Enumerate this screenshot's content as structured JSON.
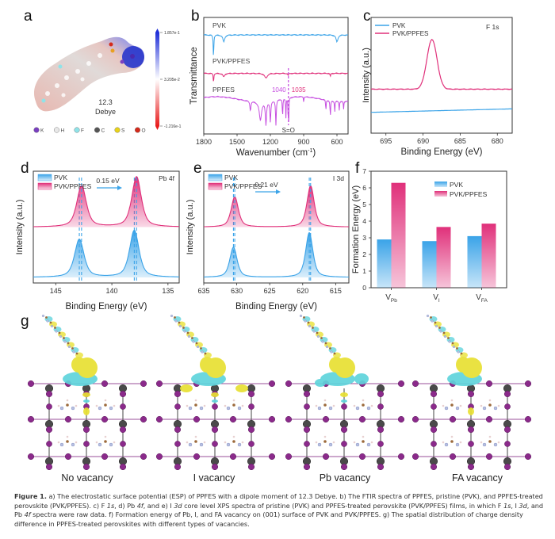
{
  "panels": {
    "a": {
      "letter": "a",
      "dipole_value": "12.3",
      "dipole_unit": "Debye",
      "colorbar": {
        "max": "1.857e-1",
        "mid": "3.205e-2",
        "min": "-1.216e-1",
        "colors": [
          "#1f2fd8",
          "#ffffff",
          "#e81c1c"
        ]
      },
      "atom_legend": [
        {
          "symbol": "K",
          "color": "#7a3fc0"
        },
        {
          "symbol": "H",
          "color": "#e8e8e8"
        },
        {
          "symbol": "F",
          "color": "#8fe3e8"
        },
        {
          "symbol": "C",
          "color": "#555555"
        },
        {
          "symbol": "S",
          "color": "#e8d21a"
        },
        {
          "symbol": "O",
          "color": "#d42a1a"
        }
      ]
    },
    "b": {
      "letter": "b"
    },
    "c": {
      "letter": "c"
    },
    "d": {
      "letter": "d"
    },
    "e": {
      "letter": "e"
    },
    "f": {
      "letter": "f"
    },
    "g": {
      "letter": "g",
      "labels": [
        "No vacancy",
        "I vacancy",
        "Pb vacancy",
        "FA vacancy"
      ]
    }
  },
  "colors": {
    "pvk": "#3aa3e8",
    "pvk_ppfes": "#e0307a",
    "ppfes": "#c64ee0"
  },
  "chart_data": [
    {
      "id": "b",
      "type": "line",
      "title": "",
      "xlabel": "Wavenumber (cm⁻¹)",
      "ylabel": "Transmittance",
      "xlim": [
        1800,
        500
      ],
      "xticks": [
        1800,
        1500,
        1200,
        900,
        600
      ],
      "series": [
        {
          "name": "PVK",
          "color": "#3aa3e8",
          "offset": 0.85,
          "dips": [
            [
              1712,
              0.2,
              6
            ],
            [
              1620,
              0.06,
              20
            ],
            [
              600,
              0.06,
              20
            ]
          ]
        },
        {
          "name": "PVK/PPFES",
          "color": "#e0307a",
          "offset": 0.52,
          "dips": [
            [
              1712,
              0.08,
              6
            ],
            [
              1620,
              0.03,
              20
            ],
            [
              1240,
              0.04,
              30
            ],
            [
              1040,
              0.02,
              8
            ],
            [
              660,
              0.03,
              6
            ]
          ]
        },
        {
          "name": "PPFES",
          "color": "#c64ee0",
          "offset": 0.3,
          "dips": [
            [
              1380,
              0.08,
              10
            ],
            [
              1290,
              0.16,
              25
            ],
            [
              1240,
              0.2,
              12
            ],
            [
              1200,
              0.18,
              10
            ],
            [
              1150,
              0.22,
              8
            ],
            [
              1090,
              0.16,
              6
            ],
            [
              1060,
              0.17,
              5
            ],
            [
              1040,
              0.2,
              4
            ],
            [
              1035,
              0.2,
              4
            ],
            [
              900,
              0.05,
              4
            ],
            [
              700,
              0.1,
              5
            ],
            [
              660,
              0.14,
              6
            ],
            [
              620,
              0.1,
              5
            ],
            [
              580,
              0.08,
              5
            ],
            [
              540,
              0.07,
              5
            ]
          ]
        }
      ],
      "annotations": {
        "peak_left": "1040",
        "peak_right": "1035",
        "bond": "S=O"
      }
    },
    {
      "id": "c",
      "type": "line",
      "title": "F 1s",
      "xlabel": "Binding Energy (eV)",
      "ylabel": "Intensity (a.u.)",
      "xlim": [
        697,
        678
      ],
      "xticks": [
        695,
        690,
        685,
        680
      ],
      "series": [
        {
          "name": "PVK",
          "color": "#3aa3e8",
          "baseline": [
            0.18,
            0.21
          ]
        },
        {
          "name": "PVK/PPFES",
          "color": "#e0307a",
          "baseline": [
            0.38,
            0.38
          ],
          "peak_center": 688.8,
          "peak_height": 0.43,
          "peak_fwhm": 1.6
        }
      ]
    },
    {
      "id": "d",
      "type": "area",
      "title": "Pb 4f",
      "xlabel": "Binding Energy (eV)",
      "ylabel": "Intensity (a.u.)",
      "xlim": [
        147,
        134
      ],
      "xticks": [
        145,
        140,
        135
      ],
      "shift_label": "0.15 eV",
      "series": [
        {
          "name": "PVK",
          "color": "#3aa3e8",
          "baseline": 0.05,
          "peaks": [
            [
              142.9,
              0.34
            ],
            [
              138.0,
              0.42
            ]
          ],
          "fwhm": 1.0
        },
        {
          "name": "PVK/PPFES",
          "color": "#e0307a",
          "baseline": 0.5,
          "peaks": [
            [
              142.7,
              0.37
            ],
            [
              137.8,
              0.45
            ]
          ],
          "fwhm": 1.0
        }
      ]
    },
    {
      "id": "e",
      "type": "area",
      "title": "I 3d",
      "xlabel": "Binding Energy (eV)",
      "ylabel": "Intensity (a.u.)",
      "xlim": [
        635,
        613
      ],
      "xticks": [
        635,
        630,
        625,
        620,
        615
      ],
      "shift_label": "0.21 eV",
      "series": [
        {
          "name": "PVK",
          "color": "#3aa3e8",
          "baseline": 0.05,
          "peaks": [
            [
              630.5,
              0.27
            ],
            [
              619.0,
              0.4
            ]
          ],
          "fwhm": 1.3
        },
        {
          "name": "PVK/PPFES",
          "color": "#e0307a",
          "baseline": 0.5,
          "peaks": [
            [
              630.3,
              0.27
            ],
            [
              618.8,
              0.37
            ]
          ],
          "fwhm": 1.3
        }
      ]
    },
    {
      "id": "f",
      "type": "bar",
      "title": "",
      "xlabel": "",
      "ylabel": "Formation Energy (eV)",
      "ylim": [
        0,
        7
      ],
      "yticks": [
        0,
        1,
        2,
        3,
        4,
        5,
        6,
        7
      ],
      "categories": [
        {
          "main": "V",
          "sub": "Pb"
        },
        {
          "main": "V",
          "sub": "I"
        },
        {
          "main": "V",
          "sub": "FA"
        }
      ],
      "series": [
        {
          "name": "PVK",
          "color": "#3aa3e8",
          "values": [
            2.9,
            2.8,
            3.1
          ]
        },
        {
          "name": "PVK/PPFES",
          "color": "#e0307a",
          "values": [
            6.3,
            3.65,
            3.85
          ]
        }
      ],
      "legend": "top-right"
    }
  ],
  "caption": {
    "label": "Figure 1.",
    "text_parts": [
      {
        "t": " a) The electrostatic surface potential (ESP) of PPFES with a dipole moment of 12.3 Debye. b) The FTIR spectra of PPFES, pristine (PVK), and PPFES-treated perovskite (PVK/PPFES). c) F ",
        "i": false
      },
      {
        "t": "1s",
        "i": true
      },
      {
        "t": ", d) Pb ",
        "i": false
      },
      {
        "t": "4f",
        "i": true
      },
      {
        "t": ", and e) I ",
        "i": false
      },
      {
        "t": "3d",
        "i": true
      },
      {
        "t": " core level XPS spectra of pristine (PVK) and PPFES-treated perovskite (PVK/PPFES) films, in which F ",
        "i": false
      },
      {
        "t": "1s",
        "i": true
      },
      {
        "t": ", I ",
        "i": false
      },
      {
        "t": "3d",
        "i": true
      },
      {
        "t": ", and Pb ",
        "i": false
      },
      {
        "t": "4f",
        "i": true
      },
      {
        "t": " spectra were raw data. f) Formation energy of Pb, I, and FA vacancy on (001) surface of PVK and PVK/PPFES. g) The spatial distribution of charge density difference in PPFES-treated perovskites with different types of vacancies.",
        "i": false
      }
    ]
  }
}
